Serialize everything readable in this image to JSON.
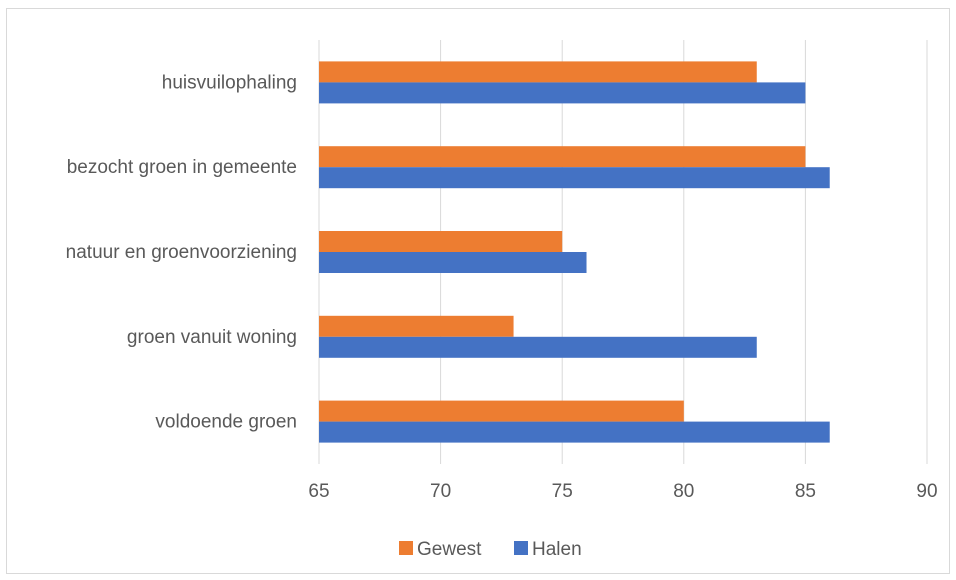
{
  "chart_data": {
    "type": "bar",
    "orientation": "horizontal",
    "categories": [
      "huisvuilophaling",
      "bezocht groen in gemeente",
      "natuur en groenvoorziening",
      "groen vanuit woning",
      "voldoende groen"
    ],
    "series": [
      {
        "name": "Gewest",
        "color": "#ED7D31",
        "values": [
          83,
          85,
          75,
          73,
          80
        ]
      },
      {
        "name": "Halen",
        "color": "#4472C4",
        "values": [
          85,
          86,
          76,
          83,
          86
        ]
      }
    ],
    "xlim": [
      65,
      90
    ],
    "xticks": [
      65,
      70,
      75,
      80,
      85,
      90
    ],
    "xtick_labels": [
      "65",
      "70",
      "75",
      "80",
      "85",
      "90"
    ],
    "grid": "vertical",
    "legend_position": "bottom",
    "title": "",
    "xlabel": "",
    "ylabel": ""
  }
}
